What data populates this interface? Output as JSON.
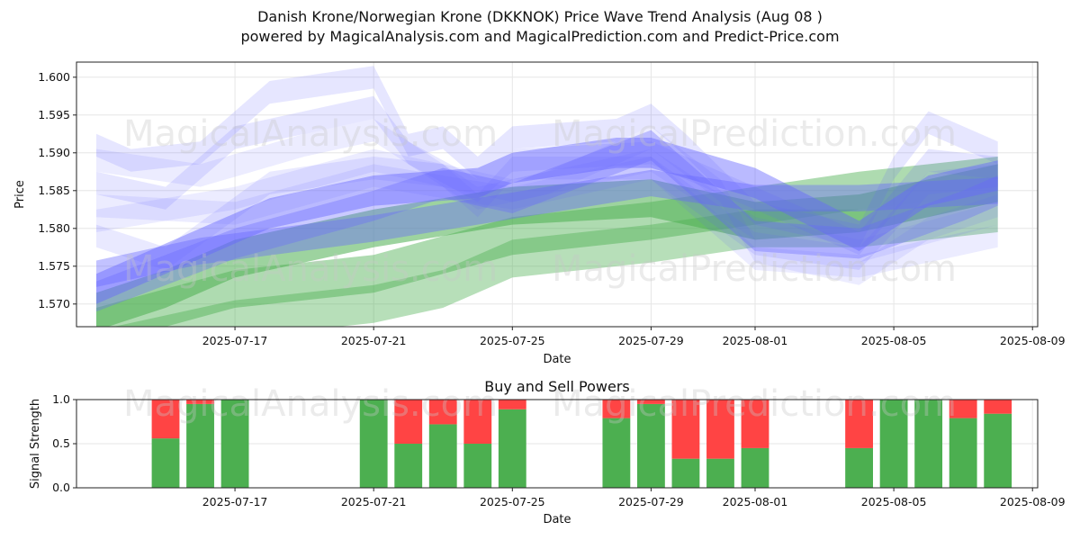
{
  "header": {
    "title_line1": "Danish Krone/Norwegian Krone (DKKNOK) Price Wave Trend Analysis (Aug 08 )",
    "title_line2": "powered by MagicalAnalysis.com and MagicalPrediction.com and Predict-Price.com"
  },
  "watermarks": {
    "left": "MagicalAnalysis.com",
    "right": "MagicalPrediction.com"
  },
  "colors": {
    "blue_band": "#6666ff",
    "green_band": "#4caf50",
    "buy": "#4caf50",
    "sell": "#ff4444",
    "grid": "#e6e6e6"
  },
  "chart_data": [
    {
      "type": "area",
      "xlabel": "Date",
      "ylabel": "Price",
      "ylim": [
        1.567,
        1.602
      ],
      "xlim": [
        "2025-07-12",
        "2025-08-09"
      ],
      "x_ticks": [
        "2025-07-17",
        "2025-07-21",
        "2025-07-25",
        "2025-07-29",
        "2025-08-01",
        "2025-08-05",
        "2025-08-09"
      ],
      "y_ticks": [
        "1.570",
        "1.575",
        "1.580",
        "1.585",
        "1.590",
        "1.595",
        "1.600"
      ],
      "grid": true,
      "series": [
        {
          "color": "blue",
          "opacity": 0.45,
          "width": 0.004,
          "x": [
            "2025-07-13",
            "2025-07-15",
            "2025-07-18",
            "2025-07-21",
            "2025-07-24",
            "2025-07-25",
            "2025-07-28",
            "2025-07-29",
            "2025-08-01",
            "2025-08-04",
            "2025-08-06",
            "2025-08-08"
          ],
          "y": [
            1.572,
            1.576,
            1.582,
            1.585,
            1.586,
            1.588,
            1.59,
            1.59,
            1.586,
            1.579,
            1.585,
            1.587
          ]
        },
        {
          "color": "blue",
          "opacity": 0.35,
          "width": 0.004,
          "x": [
            "2025-07-13",
            "2025-07-17",
            "2025-07-21",
            "2025-07-23",
            "2025-07-25",
            "2025-07-29",
            "2025-08-01",
            "2025-08-04",
            "2025-08-07",
            "2025-08-08"
          ],
          "y": [
            1.571,
            1.578,
            1.583,
            1.586,
            1.584,
            1.591,
            1.579,
            1.578,
            1.583,
            1.585
          ]
        },
        {
          "color": "blue",
          "opacity": 0.4,
          "width": 0.0035,
          "x": [
            "2025-07-13",
            "2025-07-16",
            "2025-07-21",
            "2025-07-25",
            "2025-07-29",
            "2025-08-01",
            "2025-08-04",
            "2025-08-08"
          ],
          "y": [
            1.574,
            1.577,
            1.58,
            1.583,
            1.586,
            1.584,
            1.584,
            1.585
          ]
        },
        {
          "color": "blue",
          "opacity": 0.16,
          "width": 0.003,
          "x": [
            "2025-07-13",
            "2025-07-14",
            "2025-07-16",
            "2025-07-18",
            "2025-07-21",
            "2025-07-22",
            "2025-07-23",
            "2025-07-24",
            "2025-07-25",
            "2025-07-28",
            "2025-07-29",
            "2025-07-30",
            "2025-08-01",
            "2025-08-04",
            "2025-08-05",
            "2025-08-06",
            "2025-08-07",
            "2025-08-08"
          ],
          "y": [
            1.591,
            1.589,
            1.59,
            1.598,
            1.6,
            1.591,
            1.592,
            1.588,
            1.592,
            1.593,
            1.595,
            1.591,
            1.582,
            1.579,
            1.588,
            1.594,
            1.592,
            1.59
          ]
        },
        {
          "color": "blue",
          "opacity": 0.16,
          "width": 0.003,
          "x": [
            "2025-07-13",
            "2025-07-15",
            "2025-07-17",
            "2025-07-21",
            "2025-07-22",
            "2025-07-24",
            "2025-07-25",
            "2025-07-29",
            "2025-08-01",
            "2025-08-04",
            "2025-08-06",
            "2025-08-08"
          ],
          "y": [
            1.586,
            1.584,
            1.592,
            1.596,
            1.59,
            1.585,
            1.589,
            1.59,
            1.584,
            1.578,
            1.589,
            1.588
          ]
        },
        {
          "color": "blue",
          "opacity": 0.14,
          "width": 0.003,
          "x": [
            "2025-07-13",
            "2025-07-15",
            "2025-07-18",
            "2025-07-21",
            "2025-07-23",
            "2025-07-24",
            "2025-07-25",
            "2025-07-29",
            "2025-08-01",
            "2025-08-04",
            "2025-08-06",
            "2025-08-08"
          ],
          "y": [
            1.579,
            1.576,
            1.586,
            1.588,
            1.587,
            1.583,
            1.588,
            1.588,
            1.578,
            1.576,
            1.586,
            1.587
          ]
        },
        {
          "color": "blue",
          "opacity": 0.12,
          "width": 0.003,
          "x": [
            "2025-07-13",
            "2025-07-16",
            "2025-07-19",
            "2025-07-21",
            "2025-07-24",
            "2025-07-26",
            "2025-07-29",
            "2025-07-31",
            "2025-08-01",
            "2025-08-04",
            "2025-08-06",
            "2025-08-08"
          ],
          "y": [
            1.589,
            1.587,
            1.591,
            1.593,
            1.584,
            1.586,
            1.592,
            1.585,
            1.577,
            1.574,
            1.58,
            1.583
          ]
        },
        {
          "color": "blue",
          "opacity": 0.12,
          "width": 0.003,
          "x": [
            "2025-07-13",
            "2025-07-17",
            "2025-07-21",
            "2025-07-25",
            "2025-07-29",
            "2025-08-01",
            "2025-08-04",
            "2025-08-08"
          ],
          "y": [
            1.583,
            1.582,
            1.587,
            1.584,
            1.588,
            1.576,
            1.575,
            1.579
          ]
        },
        {
          "color": "blue",
          "opacity": 0.12,
          "width": 0.003,
          "x": [
            "2025-07-13",
            "2025-07-17",
            "2025-07-21",
            "2025-07-25",
            "2025-07-29",
            "2025-08-01",
            "2025-08-04",
            "2025-08-08"
          ],
          "y": [
            1.581,
            1.584,
            1.589,
            1.585,
            1.589,
            1.58,
            1.577,
            1.582
          ]
        },
        {
          "color": "green",
          "opacity": 0.55,
          "width": 0.005,
          "x": [
            "2025-07-13",
            "2025-07-15",
            "2025-07-17",
            "2025-07-21",
            "2025-07-25",
            "2025-07-29",
            "2025-08-01",
            "2025-08-04",
            "2025-08-08"
          ],
          "y": [
            1.569,
            1.572,
            1.576,
            1.58,
            1.583,
            1.584,
            1.581,
            1.582,
            1.586
          ]
        },
        {
          "color": "green",
          "opacity": 0.45,
          "width": 0.005,
          "x": [
            "2025-07-13",
            "2025-07-17",
            "2025-07-21",
            "2025-07-25",
            "2025-07-29",
            "2025-08-01",
            "2025-08-04",
            "2025-08-08"
          ],
          "y": [
            1.567,
            1.572,
            1.574,
            1.579,
            1.581,
            1.583,
            1.585,
            1.587
          ]
        },
        {
          "color": "green",
          "opacity": 0.4,
          "width": 0.005,
          "x": [
            "2025-07-13",
            "2025-07-17",
            "2025-07-21",
            "2025-07-23",
            "2025-07-25",
            "2025-07-29",
            "2025-08-01",
            "2025-08-04",
            "2025-08-08"
          ],
          "y": [
            1.564,
            1.568,
            1.57,
            1.572,
            1.576,
            1.578,
            1.58,
            1.58,
            1.582
          ]
        }
      ]
    },
    {
      "type": "bar",
      "title": "Buy and Sell Powers",
      "xlabel": "Date",
      "ylabel": "Signal Strength",
      "ylim": [
        0,
        1
      ],
      "y_ticks": [
        "0.0",
        "0.5",
        "1.0"
      ],
      "x_ticks": [
        "2025-07-17",
        "2025-07-21",
        "2025-07-25",
        "2025-07-29",
        "2025-08-01",
        "2025-08-05",
        "2025-08-09"
      ],
      "grid": true,
      "categories": [
        "2025-07-15",
        "2025-07-16",
        "2025-07-17",
        "2025-07-21",
        "2025-07-22",
        "2025-07-23",
        "2025-07-24",
        "2025-07-25",
        "2025-07-28",
        "2025-07-29",
        "2025-07-30",
        "2025-07-31",
        "2025-08-01",
        "2025-08-04",
        "2025-08-05",
        "2025-08-06",
        "2025-08-07",
        "2025-08-08"
      ],
      "series": [
        {
          "name": "buy",
          "values": [
            0.56,
            0.95,
            1.0,
            1.0,
            0.5,
            0.72,
            0.5,
            0.89,
            0.79,
            0.95,
            0.33,
            0.33,
            0.45,
            0.45,
            1.0,
            1.0,
            0.79,
            0.84
          ]
        },
        {
          "name": "sell",
          "values": [
            0.44,
            0.05,
            0.0,
            0.0,
            0.5,
            0.28,
            0.5,
            0.11,
            0.21,
            0.05,
            0.67,
            0.67,
            0.55,
            0.55,
            0.0,
            0.0,
            0.21,
            0.16
          ]
        }
      ]
    }
  ]
}
